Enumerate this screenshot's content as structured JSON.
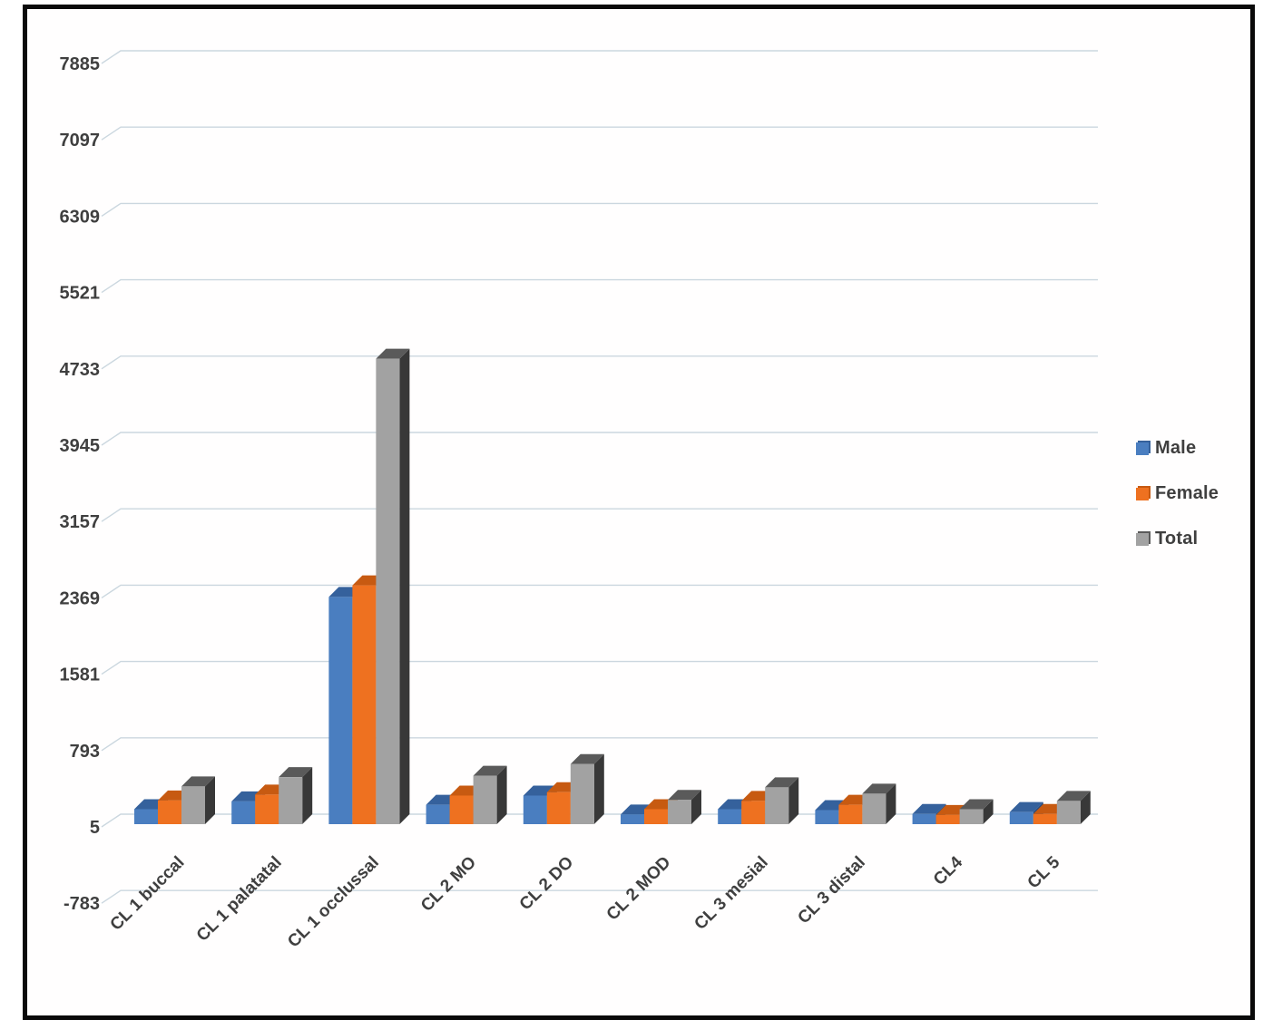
{
  "chart_data": {
    "type": "bar",
    "style": "3d-clustered-column",
    "title": "",
    "xlabel": "",
    "ylabel": "",
    "grid": true,
    "legend_position": "right",
    "categories": [
      "CL 1 buccal",
      "CL 1 palatatal",
      "CL 1 occlussal",
      "CL 2 MO",
      "CL 2 DO",
      "CL 2 MOD",
      "CL 3 mesial",
      "CL 3 distal",
      "CL4",
      "CL 5"
    ],
    "series": [
      {
        "name": "Male",
        "color": "#4a7ec0",
        "top_color": "#35619c",
        "side_color": "#27497a",
        "values": [
          160,
          240,
          2350,
          205,
          300,
          105,
          160,
          150,
          110,
          130
        ]
      },
      {
        "name": "Female",
        "color": "#ee7120",
        "top_color": "#c75a11",
        "side_color": "#8f3f0a",
        "values": [
          250,
          310,
          2470,
          300,
          335,
          160,
          245,
          205,
          100,
          110
        ]
      },
      {
        "name": "Total",
        "color": "#a2a2a2",
        "top_color": "#5a5a5a",
        "side_color": "#383838",
        "values": [
          395,
          490,
          4810,
          505,
          625,
          255,
          385,
          320,
          160,
          245
        ]
      }
    ],
    "y_ticks": [
      7885,
      7097,
      6309,
      5521,
      4733,
      3945,
      3157,
      2369,
      1581,
      793,
      5,
      -783
    ],
    "y_tick_step": 788,
    "baseline_value": 5,
    "ylim": [
      -783,
      7885
    ],
    "gridline_color": "#cbd7df",
    "text_color": "#3f3f3f"
  }
}
